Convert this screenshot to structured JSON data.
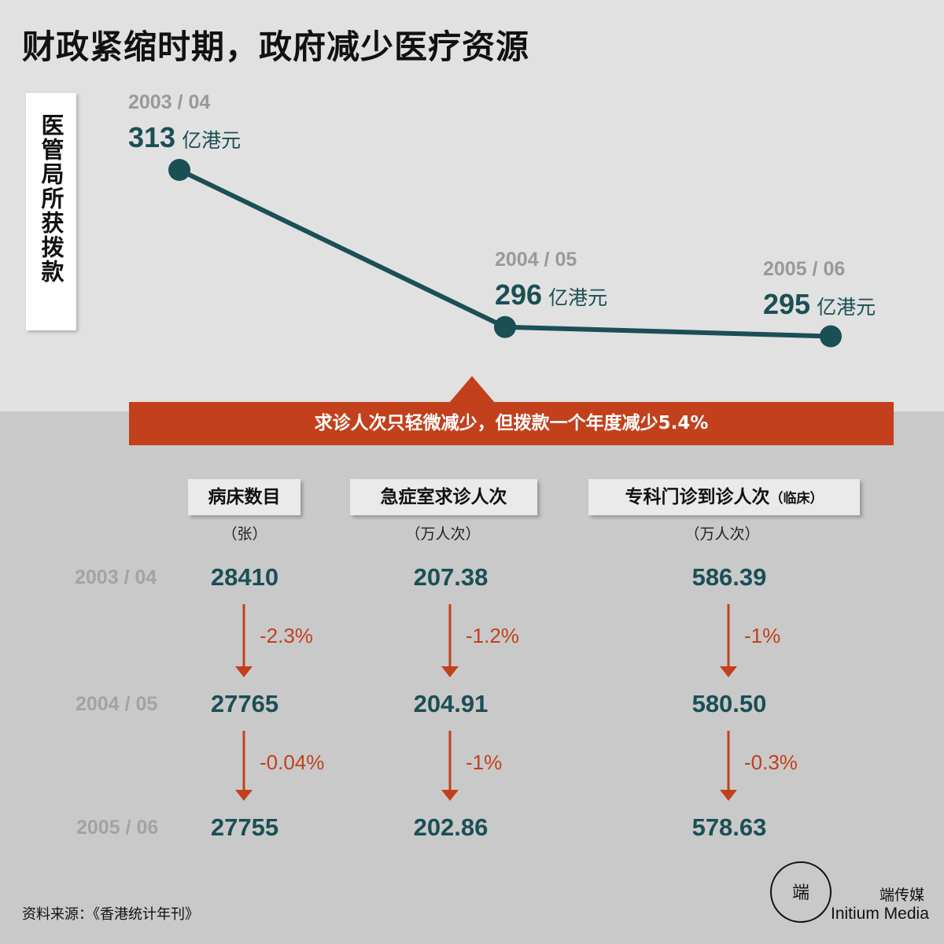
{
  "title": "财政紧缩时期，政府减少医疗资源",
  "chart_data": {
    "type": "line",
    "ylabel": "医管局所获拨款",
    "x": [
      "2003 / 04",
      "2004 / 05",
      "2005 / 06"
    ],
    "values": [
      313,
      296,
      295
    ],
    "unit": "亿港元",
    "colors": {
      "line": "#1a4f55",
      "accent": "#c2401c"
    }
  },
  "banner": "求诊人次只轻微减少，但拨款一个年度减少5.4%",
  "table": {
    "rows": [
      "2003 / 04",
      "2004 / 05",
      "2005 / 06"
    ],
    "columns": [
      {
        "title": "病床数目",
        "title_note": "",
        "unit": "（张）",
        "values": [
          "28410",
          "27765",
          "27755"
        ],
        "changes": [
          "-2.3%",
          "-0.04%"
        ]
      },
      {
        "title": "急症室求诊人次",
        "title_note": "",
        "unit": "（万人次）",
        "values": [
          "207.38",
          "204.91",
          "202.86"
        ],
        "changes": [
          "-1.2%",
          "-1%"
        ]
      },
      {
        "title": "专科门诊到诊人次",
        "title_note": "（临床）",
        "unit": "（万人次）",
        "values": [
          "586.39",
          "580.50",
          "578.63"
        ],
        "changes": [
          "-1%",
          "-0.3%"
        ]
      }
    ]
  },
  "source": "资料来源：《香港统计年刊》",
  "brand": {
    "name_cn": "端传媒",
    "name_en": "Initium Media",
    "logo_text": "端"
  }
}
